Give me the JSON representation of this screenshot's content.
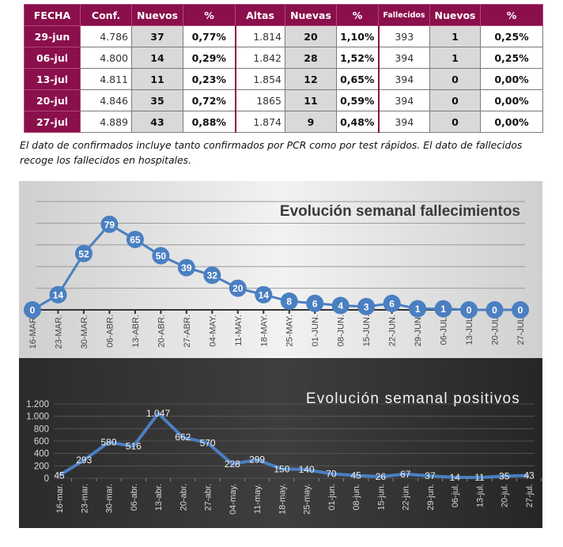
{
  "table": {
    "headers": [
      "FECHA",
      "Conf.",
      "Nuevos",
      "%",
      "Altas",
      "Nuevas",
      "%",
      "Fallecidos",
      "Nuevos",
      "%"
    ],
    "rows": [
      [
        "29-jun",
        "4.786",
        "37",
        "0,77%",
        "1.814",
        "20",
        "1,10%",
        "393",
        "1",
        "0,25%"
      ],
      [
        "06-jul",
        "4.800",
        "14",
        "0,29%",
        "1.842",
        "28",
        "1,52%",
        "394",
        "1",
        "0,25%"
      ],
      [
        "13-jul",
        "4.811",
        "11",
        "0,23%",
        "1.854",
        "12",
        "0,65%",
        "394",
        "0",
        "0,00%"
      ],
      [
        "20-jul",
        "4.846",
        "35",
        "0,72%",
        "1865",
        "11",
        "0,59%",
        "394",
        "0",
        "0,00%"
      ],
      [
        "27-jul",
        "4.889",
        "43",
        "0,88%",
        "1.874",
        "9",
        "0,48%",
        "394",
        "0",
        "0,00%"
      ]
    ]
  },
  "note": "El dato de confirmados incluye tanto confirmados por PCR como por test rápidos. El dato de fallecidos recoge los fallecidos en hospitales.",
  "colors": {
    "header": "#8a0f4a",
    "series": "#4a7fc1",
    "grey_cell": "#d9d9d9"
  },
  "chart_data": [
    {
      "type": "line",
      "title": "Evolución semanal fallecimientos",
      "xlabel": "",
      "ylabel": "",
      "categories": [
        "16-MAR.",
        "23-MAR.",
        "30-MAR.",
        "06-ABR.",
        "13-ABR.",
        "20-ABR.",
        "27-ABR.",
        "04-MAY.",
        "11-MAY.",
        "18-MAY.",
        "25-MAY.",
        "01-JUN.",
        "08-JUN.",
        "15-JUN.",
        "22-JUN.",
        "29-JUN.",
        "06-JUL.",
        "13-JUL.",
        "20-JUL.",
        "27-JUL."
      ],
      "values": [
        0,
        14,
        52,
        79,
        65,
        50,
        39,
        32,
        20,
        14,
        8,
        6,
        4,
        3,
        6,
        1,
        1,
        0,
        0,
        0
      ],
      "ylim": [
        0,
        100
      ],
      "grid": true,
      "axis_labels_visible": false,
      "data_labels": true,
      "theme": "light"
    },
    {
      "type": "line",
      "title": "Evolución semanal positivos",
      "xlabel": "",
      "ylabel": "",
      "categories": [
        "16-mar.",
        "23-mar.",
        "30-mar.",
        "06-abr.",
        "13-abr.",
        "20-abr.",
        "27-abr.",
        "04-may.",
        "11-may.",
        "18-may.",
        "25-may.",
        "01-jun.",
        "08-jun.",
        "15-jun.",
        "22-jun.",
        "29-jun.",
        "06-jul.",
        "13-jul.",
        "20-jul.",
        "27-jul."
      ],
      "values": [
        45,
        293,
        580,
        516,
        1047,
        662,
        570,
        228,
        299,
        150,
        140,
        70,
        45,
        26,
        67,
        37,
        14,
        11,
        35,
        43
      ],
      "value_labels": [
        "45",
        "293",
        "580",
        "516",
        "1.047",
        "662",
        "570",
        "228",
        "299",
        "150",
        "140",
        "70",
        "45",
        "26",
        "67",
        "37",
        "14",
        "11",
        "35",
        "43"
      ],
      "yticks": [
        0,
        200,
        400,
        600,
        800,
        1000,
        1200
      ],
      "ytick_labels": [
        "0",
        "200",
        "400",
        "600",
        "800",
        "1.000",
        "1.200"
      ],
      "ylim": [
        0,
        1200
      ],
      "grid": true,
      "data_labels": true,
      "theme": "dark"
    }
  ]
}
